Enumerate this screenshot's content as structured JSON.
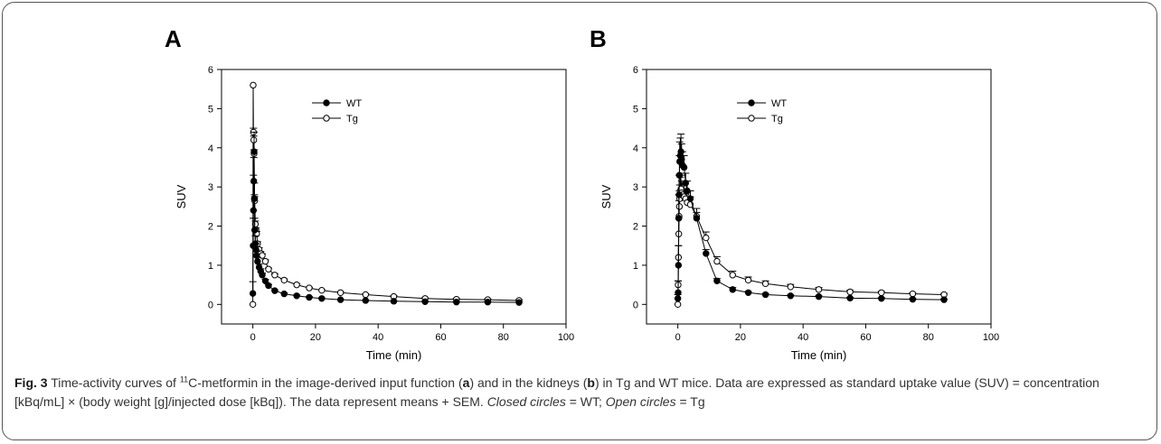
{
  "chart_data": [
    {
      "panel": "A",
      "type": "scatter",
      "xlabel": "Time (min)",
      "ylabel": "SUV",
      "xlim": [
        -10,
        100
      ],
      "ylim": [
        -0.5,
        6
      ],
      "xticks": [
        0,
        20,
        40,
        60,
        80,
        100
      ],
      "yticks": [
        0,
        1,
        2,
        3,
        4,
        5,
        6
      ],
      "legend_position": "top-center",
      "series": [
        {
          "name": "WT",
          "marker": "closed-circle",
          "x": [
            0,
            0.1,
            0.2,
            0.3,
            0.4,
            0.5,
            0.6,
            0.8,
            1.0,
            1.2,
            1.5,
            2,
            2.5,
            3,
            4,
            5,
            7,
            10,
            14,
            18,
            22,
            28,
            36,
            45,
            55,
            65,
            75,
            85
          ],
          "y": [
            0.28,
            1.5,
            2.4,
            3.15,
            3.9,
            2.7,
            1.9,
            1.55,
            1.4,
            1.25,
            1.1,
            0.95,
            0.85,
            0.75,
            0.6,
            0.48,
            0.35,
            0.27,
            0.22,
            0.18,
            0.15,
            0.12,
            0.1,
            0.08,
            0.07,
            0.06,
            0.06,
            0.05
          ],
          "sem": [
            0.3,
            0.7,
            0.9,
            0.6,
            0.5,
            0.4,
            0.3,
            0.2,
            0.15,
            0.1,
            0.1,
            0.08,
            0.06,
            0.05,
            0.04,
            0.03,
            0.02,
            0.02,
            0.02,
            0.02,
            0.01,
            0.01,
            0.01,
            0.01,
            0.01,
            0.01,
            0.01,
            0.01
          ]
        },
        {
          "name": "Tg",
          "marker": "open-circle",
          "x": [
            0,
            0.1,
            0.2,
            0.3,
            0.4,
            0.5,
            0.6,
            0.8,
            1.0,
            1.2,
            1.5,
            2,
            2.5,
            3,
            4,
            5,
            7,
            10,
            14,
            18,
            22,
            28,
            36,
            45,
            55,
            65,
            75,
            85
          ],
          "y": [
            0,
            5.6,
            4.4,
            4.2,
            3.85,
            2.7,
            2.65,
            2.05,
            1.9,
            1.8,
            1.55,
            1.4,
            1.3,
            1.25,
            1.1,
            0.9,
            0.75,
            0.62,
            0.5,
            0.42,
            0.36,
            0.3,
            0.25,
            0.2,
            0.15,
            0.13,
            0.12,
            0.1
          ],
          "sem": [
            0,
            0,
            0.1,
            0.1,
            0.1,
            0.1,
            0.1,
            0.08,
            0.06,
            0.06,
            0.05,
            0.05,
            0.05,
            0.04,
            0.04,
            0.03,
            0.03,
            0.03,
            0.03,
            0.02,
            0.02,
            0.02,
            0.02,
            0.02,
            0.02,
            0.02,
            0.02,
            0.02
          ]
        }
      ]
    },
    {
      "panel": "B",
      "type": "scatter",
      "xlabel": "Time (min)",
      "ylabel": "SUV",
      "xlim": [
        -10,
        100
      ],
      "ylim": [
        -0.5,
        6
      ],
      "xticks": [
        0,
        20,
        40,
        60,
        80,
        100
      ],
      "yticks": [
        0,
        1,
        2,
        3,
        4,
        5,
        6
      ],
      "legend_position": "top-center",
      "series": [
        {
          "name": "WT",
          "marker": "closed-circle",
          "x": [
            0,
            0.1,
            0.2,
            0.3,
            0.4,
            0.5,
            0.6,
            0.8,
            1.0,
            1.2,
            1.5,
            2,
            2.5,
            3,
            4,
            6,
            9,
            12.5,
            17.5,
            22.5,
            28,
            36,
            45,
            55,
            65,
            75,
            85
          ],
          "y": [
            0.15,
            0.3,
            1.0,
            2.2,
            2.8,
            3.3,
            3.65,
            3.8,
            3.9,
            3.7,
            3.55,
            3.5,
            3.1,
            2.9,
            2.7,
            2.2,
            1.3,
            0.6,
            0.38,
            0.3,
            0.25,
            0.22,
            0.2,
            0.16,
            0.15,
            0.13,
            0.12
          ],
          "sem": [
            0.1,
            0.3,
            0.5,
            0.6,
            0.5,
            0.5,
            0.5,
            0.45,
            0.45,
            0.4,
            0.35,
            0.3,
            0.25,
            0.25,
            0.2,
            0.15,
            0.1,
            0.06,
            0.05,
            0.03,
            0.03,
            0.02,
            0.02,
            0.02,
            0.02,
            0.02,
            0.02
          ]
        },
        {
          "name": "Tg",
          "marker": "open-circle",
          "x": [
            0,
            0.1,
            0.2,
            0.3,
            0.4,
            0.5,
            0.6,
            0.8,
            1.0,
            1.2,
            1.5,
            2,
            2.5,
            3,
            4,
            6,
            9,
            12.5,
            17.5,
            22.5,
            28,
            36,
            45,
            55,
            65,
            75,
            85
          ],
          "y": [
            0,
            0.5,
            1.2,
            1.8,
            2.25,
            2.5,
            2.7,
            2.9,
            2.95,
            2.85,
            2.8,
            2.75,
            2.7,
            2.6,
            2.55,
            2.25,
            1.7,
            1.1,
            0.75,
            0.62,
            0.53,
            0.45,
            0.38,
            0.32,
            0.3,
            0.27,
            0.25
          ],
          "sem": [
            0,
            0.1,
            0.3,
            0.4,
            0.4,
            0.4,
            0.35,
            0.35,
            0.35,
            0.3,
            0.3,
            0.3,
            0.25,
            0.25,
            0.2,
            0.2,
            0.15,
            0.12,
            0.1,
            0.08,
            0.07,
            0.06,
            0.05,
            0.04,
            0.03,
            0.03,
            0.03
          ]
        }
      ]
    }
  ],
  "caption": {
    "fig_label": "Fig. 3",
    "part1": " Time-activity curves of ",
    "sup": "11",
    "part2": "C-metformin in the image-derived input function (",
    "a": "a",
    "part3": ") and in the kidneys (",
    "b": "b",
    "part4": ") in Tg and WT mice. Data are expressed as standard uptake value (SUV) = concentration [kBq/mL] × (body weight [g]/injected dose [kBq]). The data represent means + SEM.",
    "closed_circles": "Closed circles",
    "eq_wt": " = WT; ",
    "open_circles": "Open circles",
    "eq_tg": " = Tg"
  }
}
